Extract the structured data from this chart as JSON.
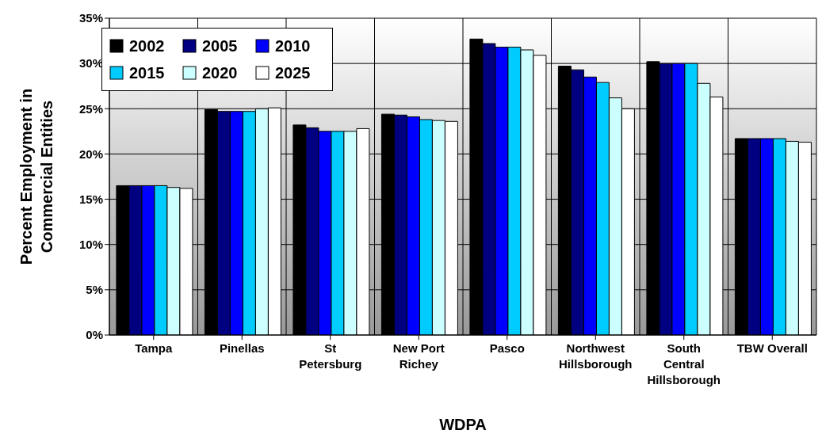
{
  "chart_data": {
    "type": "bar",
    "xlabel": "WDPA",
    "ylabel": "Percent Employment in Commercial Entities",
    "categories": [
      "Tampa",
      "Pinellas",
      "St Petersburg",
      "New Port Richey",
      "Pasco",
      "Northwest Hillsborough",
      "South Central Hillsborough",
      "TBW Overall"
    ],
    "series": [
      {
        "name": "2002",
        "color": "#000000",
        "values": [
          16.5,
          24.9,
          23.2,
          24.4,
          32.7,
          29.7,
          30.2,
          21.7
        ]
      },
      {
        "name": "2005",
        "color": "#000080",
        "values": [
          16.5,
          24.7,
          22.9,
          24.3,
          32.2,
          29.3,
          30.0,
          21.7
        ]
      },
      {
        "name": "2010",
        "color": "#0000ff",
        "values": [
          16.5,
          24.7,
          22.5,
          24.1,
          31.8,
          28.5,
          30.0,
          21.7
        ]
      },
      {
        "name": "2015",
        "color": "#00ccff",
        "values": [
          16.5,
          24.7,
          22.5,
          23.8,
          31.8,
          27.9,
          30.0,
          21.7
        ]
      },
      {
        "name": "2020",
        "color": "#ccffff",
        "values": [
          16.3,
          25.0,
          22.5,
          23.7,
          31.5,
          26.2,
          27.8,
          21.4
        ]
      },
      {
        "name": "2025",
        "color": "#ffffff",
        "values": [
          16.2,
          25.1,
          22.8,
          23.6,
          30.9,
          25.0,
          26.3,
          21.3
        ]
      }
    ],
    "ylim": [
      0,
      35
    ],
    "yticks": [
      {
        "value": 0,
        "label": "0%"
      },
      {
        "value": 5,
        "label": "5%"
      },
      {
        "value": 10,
        "label": "10%"
      },
      {
        "value": 15,
        "label": "15%"
      },
      {
        "value": 20,
        "label": "20%"
      },
      {
        "value": 25,
        "label": "25%"
      },
      {
        "value": 30,
        "label": "30%"
      },
      {
        "value": 35,
        "label": "35%"
      }
    ],
    "grid": true,
    "legend": "top left"
  }
}
